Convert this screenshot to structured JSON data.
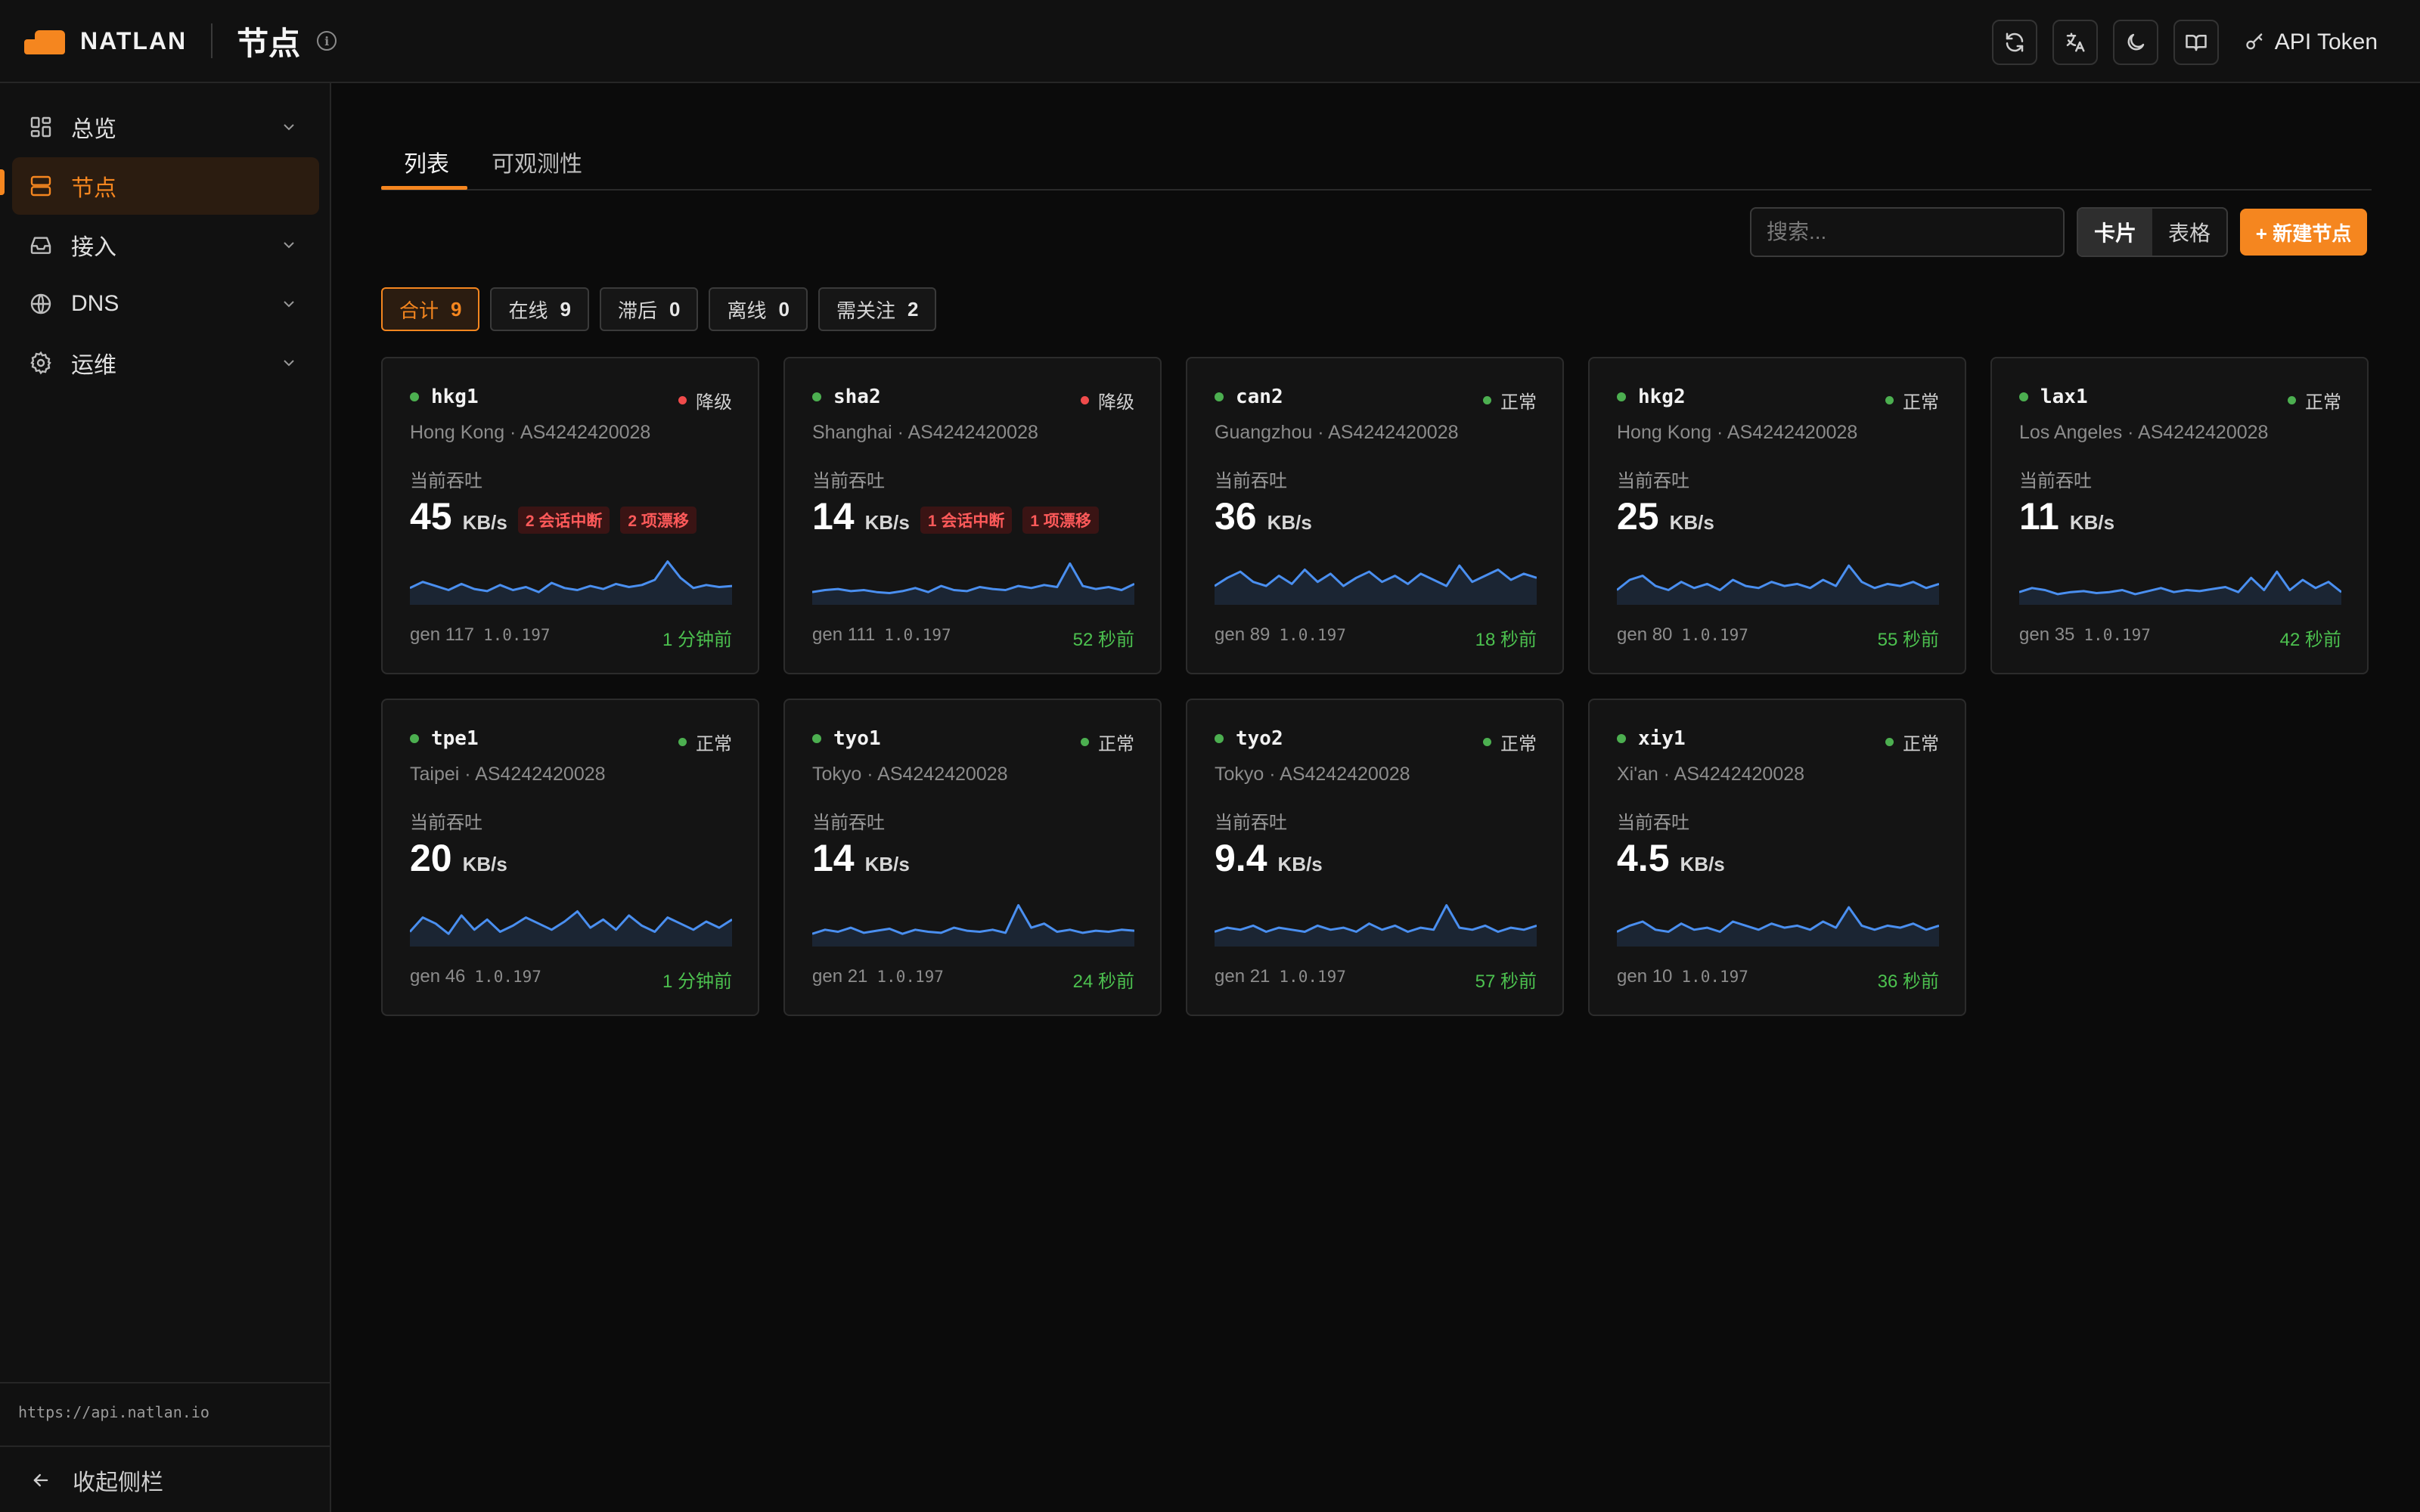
{
  "brand": {
    "name": "NATLAN"
  },
  "header": {
    "title": "节点",
    "api_token_label": "API Token"
  },
  "sidebar": {
    "items": [
      {
        "label": "总览",
        "icon": "grid-icon",
        "expandable": true,
        "active": false
      },
      {
        "label": "节点",
        "icon": "server-icon",
        "expandable": false,
        "active": true
      },
      {
        "label": "接入",
        "icon": "inbox-icon",
        "expandable": true,
        "active": false
      },
      {
        "label": "DNS",
        "icon": "globe-icon",
        "expandable": true,
        "active": false
      },
      {
        "label": "运维",
        "icon": "gear-icon",
        "expandable": true,
        "active": false
      }
    ],
    "api_url": "https://api.natlan.io",
    "collapse_label": "收起侧栏"
  },
  "tabs": [
    {
      "label": "列表",
      "active": true
    },
    {
      "label": "可观测性",
      "active": false
    }
  ],
  "toolbar": {
    "search_placeholder": "搜索...",
    "view_card": "卡片",
    "view_table": "表格",
    "new_node": "+ 新建节点"
  },
  "filters": [
    {
      "label": "合计",
      "count": "9",
      "active": true
    },
    {
      "label": "在线",
      "count": "9",
      "active": false
    },
    {
      "label": "滞后",
      "count": "0",
      "active": false
    },
    {
      "label": "离线",
      "count": "0",
      "active": false
    },
    {
      "label": "需关注",
      "count": "2",
      "active": false
    }
  ],
  "throughput_label": "当前吞吐",
  "unit": "KB/s",
  "colors": {
    "accent": "#f5861f",
    "ok": "#4caf50",
    "degraded": "#f04b4b",
    "spark": "#4a8ff0"
  },
  "nodes": [
    {
      "name": "hkg1",
      "status": "降级",
      "degraded": true,
      "location": "Hong Kong · AS4242420028",
      "throughput": "45",
      "badges": [
        "2 会话中断",
        "2 项漂移"
      ],
      "gen": "gen 117",
      "version": "1.0.197",
      "time": "1 分钟前",
      "spark": [
        12,
        18,
        14,
        10,
        16,
        11,
        9,
        15,
        10,
        13,
        8,
        17,
        12,
        10,
        14,
        11,
        16,
        13,
        15,
        20,
        38,
        22,
        12,
        15,
        13,
        14
      ]
    },
    {
      "name": "sha2",
      "status": "降级",
      "degraded": true,
      "location": "Shanghai · AS4242420028",
      "throughput": "14",
      "badges": [
        "1 会话中断",
        "1 项漂移"
      ],
      "gen": "gen 111",
      "version": "1.0.197",
      "time": "52 秒前",
      "spark": [
        8,
        10,
        11,
        9,
        10,
        8,
        7,
        9,
        12,
        8,
        14,
        10,
        9,
        13,
        11,
        10,
        14,
        12,
        15,
        13,
        36,
        14,
        11,
        13,
        10,
        16
      ]
    },
    {
      "name": "can2",
      "status": "正常",
      "degraded": false,
      "location": "Guangzhou · AS4242420028",
      "throughput": "36",
      "badges": [],
      "gen": "gen 89",
      "version": "1.0.197",
      "time": "18 秒前",
      "spark": [
        14,
        22,
        28,
        18,
        14,
        24,
        16,
        30,
        18,
        26,
        14,
        22,
        28,
        18,
        24,
        16,
        26,
        20,
        14,
        34,
        18,
        24,
        30,
        20,
        26,
        22
      ]
    },
    {
      "name": "hkg2",
      "status": "正常",
      "degraded": false,
      "location": "Hong Kong · AS4242420028",
      "throughput": "25",
      "badges": [],
      "gen": "gen 80",
      "version": "1.0.197",
      "time": "55 秒前",
      "spark": [
        10,
        20,
        24,
        14,
        10,
        18,
        12,
        16,
        10,
        20,
        14,
        12,
        18,
        14,
        16,
        12,
        20,
        14,
        34,
        18,
        12,
        16,
        14,
        18,
        12,
        16
      ]
    },
    {
      "name": "lax1",
      "status": "正常",
      "degraded": false,
      "location": "Los Angeles · AS4242420028",
      "throughput": "11",
      "badges": [],
      "gen": "gen 35",
      "version": "1.0.197",
      "time": "42 秒前",
      "spark": [
        8,
        12,
        10,
        6,
        8,
        9,
        7,
        8,
        10,
        6,
        9,
        12,
        8,
        10,
        9,
        11,
        13,
        8,
        22,
        10,
        28,
        10,
        20,
        12,
        18,
        8
      ]
    },
    {
      "name": "tpe1",
      "status": "正常",
      "degraded": false,
      "location": "Taipei · AS4242420028",
      "throughput": "20",
      "badges": [],
      "gen": "gen 46",
      "version": "1.0.197",
      "time": "1 分钟前",
      "spark": [
        10,
        24,
        18,
        8,
        26,
        12,
        22,
        10,
        16,
        24,
        18,
        12,
        20,
        30,
        14,
        22,
        12,
        26,
        16,
        10,
        24,
        18,
        12,
        20,
        14,
        22
      ]
    },
    {
      "name": "tyo1",
      "status": "正常",
      "degraded": false,
      "location": "Tokyo · AS4242420028",
      "throughput": "14",
      "badges": [],
      "gen": "gen 21",
      "version": "1.0.197",
      "time": "24 秒前",
      "spark": [
        8,
        12,
        10,
        14,
        9,
        11,
        13,
        8,
        12,
        10,
        9,
        14,
        11,
        10,
        12,
        9,
        36,
        14,
        18,
        10,
        12,
        9,
        11,
        10,
        12,
        11
      ]
    },
    {
      "name": "tyo2",
      "status": "正常",
      "degraded": false,
      "location": "Tokyo · AS4242420028",
      "throughput": "9.4",
      "badges": [],
      "gen": "gen 21",
      "version": "1.0.197",
      "time": "57 秒前",
      "spark": [
        10,
        14,
        12,
        16,
        10,
        14,
        12,
        10,
        16,
        12,
        14,
        10,
        18,
        12,
        16,
        10,
        14,
        12,
        36,
        14,
        12,
        16,
        10,
        14,
        12,
        16
      ]
    },
    {
      "name": "xiy1",
      "status": "正常",
      "degraded": false,
      "location": "Xi'an · AS4242420028",
      "throughput": "4.5",
      "badges": [],
      "gen": "gen 10",
      "version": "1.0.197",
      "time": "36 秒前",
      "spark": [
        10,
        16,
        20,
        12,
        10,
        18,
        12,
        14,
        10,
        20,
        16,
        12,
        18,
        14,
        16,
        12,
        20,
        14,
        34,
        16,
        12,
        16,
        14,
        18,
        12,
        16
      ]
    }
  ]
}
